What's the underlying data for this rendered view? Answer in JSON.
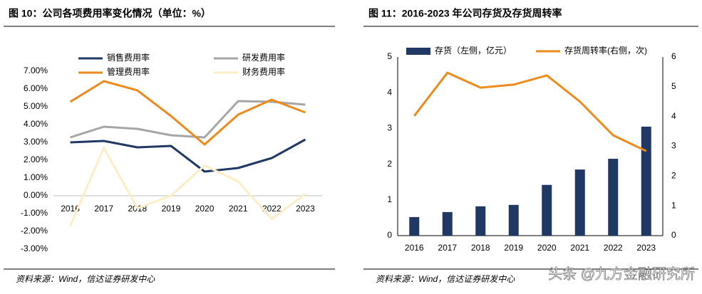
{
  "chart_data": [
    {
      "type": "line",
      "title": "图 10：公司各项费用率变化情况（单位：%）",
      "categories": [
        "2016",
        "2017",
        "2018",
        "2019",
        "2020",
        "2021",
        "2022",
        "2023"
      ],
      "series": [
        {
          "name": "销售费用率",
          "color": "#203864",
          "values": [
            3.0,
            3.08,
            2.72,
            2.8,
            1.36,
            1.56,
            2.12,
            3.16
          ]
        },
        {
          "name": "研发费用率",
          "color": "#a6a6a6",
          "values": [
            3.28,
            3.88,
            3.76,
            3.4,
            3.28,
            5.32,
            5.28,
            5.12
          ]
        },
        {
          "name": "管理费用率",
          "color": "#ed8b1e",
          "values": [
            5.28,
            6.44,
            5.92,
            4.48,
            2.88,
            4.56,
            5.4,
            4.68
          ]
        },
        {
          "name": "财务费用率",
          "color": "#fdeec8",
          "values": [
            -1.7,
            2.7,
            -0.7,
            0.0,
            1.7,
            0.8,
            -1.3,
            0.1
          ]
        }
      ],
      "ylim": [
        -3,
        7
      ],
      "yticks": [
        {
          "value": 7,
          "label": "7.00%"
        },
        {
          "value": 6,
          "label": "6.00%"
        },
        {
          "value": 5,
          "label": "5.00%"
        },
        {
          "value": 4,
          "label": "4.00%"
        },
        {
          "value": 3,
          "label": "3.00%"
        },
        {
          "value": 2,
          "label": "2.00%"
        },
        {
          "value": 1,
          "label": "1.00%"
        },
        {
          "value": 0,
          "label": "0.00%"
        },
        {
          "value": -1,
          "label": "-1.00%"
        },
        {
          "value": -2,
          "label": "-2.00%"
        },
        {
          "value": -3,
          "label": "-3.00%"
        }
      ],
      "grid": false,
      "source": "资料来源：Wind，信达证券研发中心"
    },
    {
      "type": "combo",
      "title": "图 11：2016-2023 年公司存货及存货周转率",
      "categories": [
        "2016",
        "2017",
        "2018",
        "2019",
        "2020",
        "2021",
        "2022",
        "2023"
      ],
      "series": [
        {
          "name": "存货（左侧，亿元）",
          "type": "bar",
          "color": "#203864",
          "values": [
            0.52,
            0.66,
            0.82,
            0.86,
            1.42,
            1.85,
            2.15,
            3.05
          ]
        },
        {
          "name": "存货周转率(右侧，次)",
          "type": "line",
          "axis": "y2",
          "color": "#ed8b1e",
          "values": [
            4.02,
            5.47,
            4.97,
            5.07,
            5.38,
            4.5,
            3.37,
            2.84
          ]
        }
      ],
      "ylim": [
        0,
        5
      ],
      "yticks": [
        0,
        1,
        2,
        3,
        4,
        5
      ],
      "y2lim": [
        0,
        6
      ],
      "y2ticks": [
        0,
        1,
        2,
        3,
        4,
        5,
        6
      ],
      "grid": false,
      "source": "资料来源：Wind，信达证券研发中心"
    }
  ],
  "watermark": "头条 @九方金融研究所"
}
